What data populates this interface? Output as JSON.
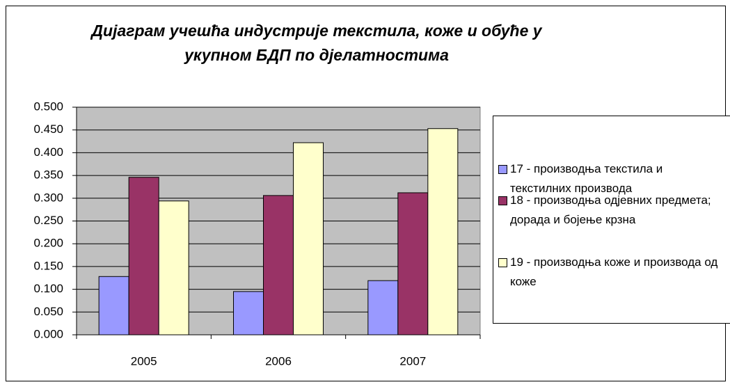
{
  "chart_data": {
    "type": "bar",
    "title": "Дијаграм учешћа индустрије текстила, коже и обуће у укупном БДП по дјелатностима",
    "categories": [
      "2005",
      "2006",
      "2007"
    ],
    "series": [
      {
        "name": "17 - производња текстила и текстилних производа",
        "color": "#9999ff",
        "values": [
          0.128,
          0.095,
          0.119
        ]
      },
      {
        "name": "18 - производња одјевних предмета; дорада и бојење крзна",
        "color": "#993366",
        "values": [
          0.346,
          0.306,
          0.312
        ]
      },
      {
        "name": "19 - производња коже и производа од коже",
        "color": "#ffffcc",
        "values": [
          0.294,
          0.422,
          0.453
        ]
      }
    ],
    "ylim": [
      0,
      0.5
    ],
    "yticks": [
      {
        "value": 0,
        "label": "0.000"
      },
      {
        "value": 0.05,
        "label": "0.050"
      },
      {
        "value": 0.1,
        "label": "0.100"
      },
      {
        "value": 0.15,
        "label": "0.150"
      },
      {
        "value": 0.2,
        "label": "0.200"
      },
      {
        "value": 0.25,
        "label": "0.250"
      },
      {
        "value": 0.3,
        "label": "0.300"
      },
      {
        "value": 0.35,
        "label": "0.350"
      },
      {
        "value": 0.4,
        "label": "0.400"
      },
      {
        "value": 0.45,
        "label": "0.450"
      },
      {
        "value": 0.5,
        "label": "0.500"
      }
    ],
    "grid": true,
    "legend": "right"
  }
}
